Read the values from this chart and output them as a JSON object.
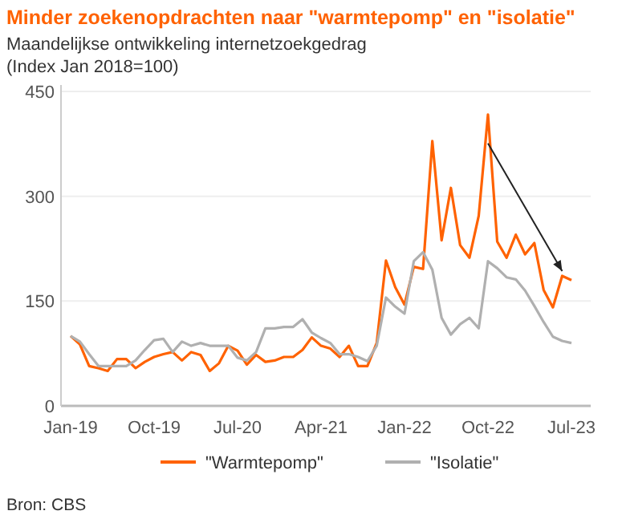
{
  "chart_data": {
    "type": "line",
    "title": "Minder zoekenopdrachten naar \"warmtepomp\" en \"isolatie\"",
    "subtitle": "Maandelijkse ontwikkeling internetzoekgedrag\n(Index Jan 2018=100)",
    "categories": [
      "Jan-19",
      null,
      null,
      null,
      null,
      null,
      null,
      null,
      null,
      "Oct-19",
      null,
      null,
      null,
      null,
      null,
      null,
      null,
      null,
      "Jul-20",
      null,
      null,
      null,
      null,
      null,
      null,
      null,
      null,
      "Apr-21",
      null,
      null,
      null,
      null,
      null,
      null,
      null,
      null,
      "Jan-22",
      null,
      null,
      null,
      null,
      null,
      null,
      null,
      null,
      "Oct-22",
      null,
      null,
      null,
      null,
      null,
      null,
      null,
      null,
      "Jul-23"
    ],
    "series": [
      {
        "name": "\"Warmtepomp\"",
        "color": "#ff6200",
        "values": [
          100,
          88,
          57,
          54,
          50,
          67,
          67,
          54,
          63,
          70,
          74,
          77,
          65,
          77,
          73,
          50,
          61,
          86,
          79,
          59,
          73,
          63,
          65,
          70,
          70,
          80,
          98,
          86,
          82,
          70,
          86,
          57,
          57,
          90,
          208,
          170,
          145,
          199,
          196,
          379,
          237,
          312,
          230,
          212,
          272,
          417,
          235,
          212,
          245,
          217,
          233,
          166,
          141,
          186,
          180
        ]
      },
      {
        "name": "\"Isolatie\"",
        "color": "#b0b0b0",
        "values": [
          100,
          92,
          74,
          57,
          57,
          57,
          57,
          65,
          80,
          94,
          96,
          77,
          92,
          86,
          90,
          86,
          86,
          86,
          69,
          65,
          77,
          111,
          111,
          113,
          113,
          124,
          105,
          97,
          90,
          74,
          74,
          70,
          64,
          86,
          155,
          142,
          132,
          207,
          220,
          195,
          126,
          102,
          117,
          126,
          111,
          207,
          197,
          184,
          181,
          165,
          143,
          120,
          99,
          93,
          90
        ]
      }
    ],
    "ylim": [
      0,
      450
    ],
    "yticks": [
      0,
      150,
      300,
      450
    ],
    "grid": "y",
    "legend": "bottom",
    "line_style": "solid",
    "annotations": [
      "Bron: CBS"
    ]
  }
}
